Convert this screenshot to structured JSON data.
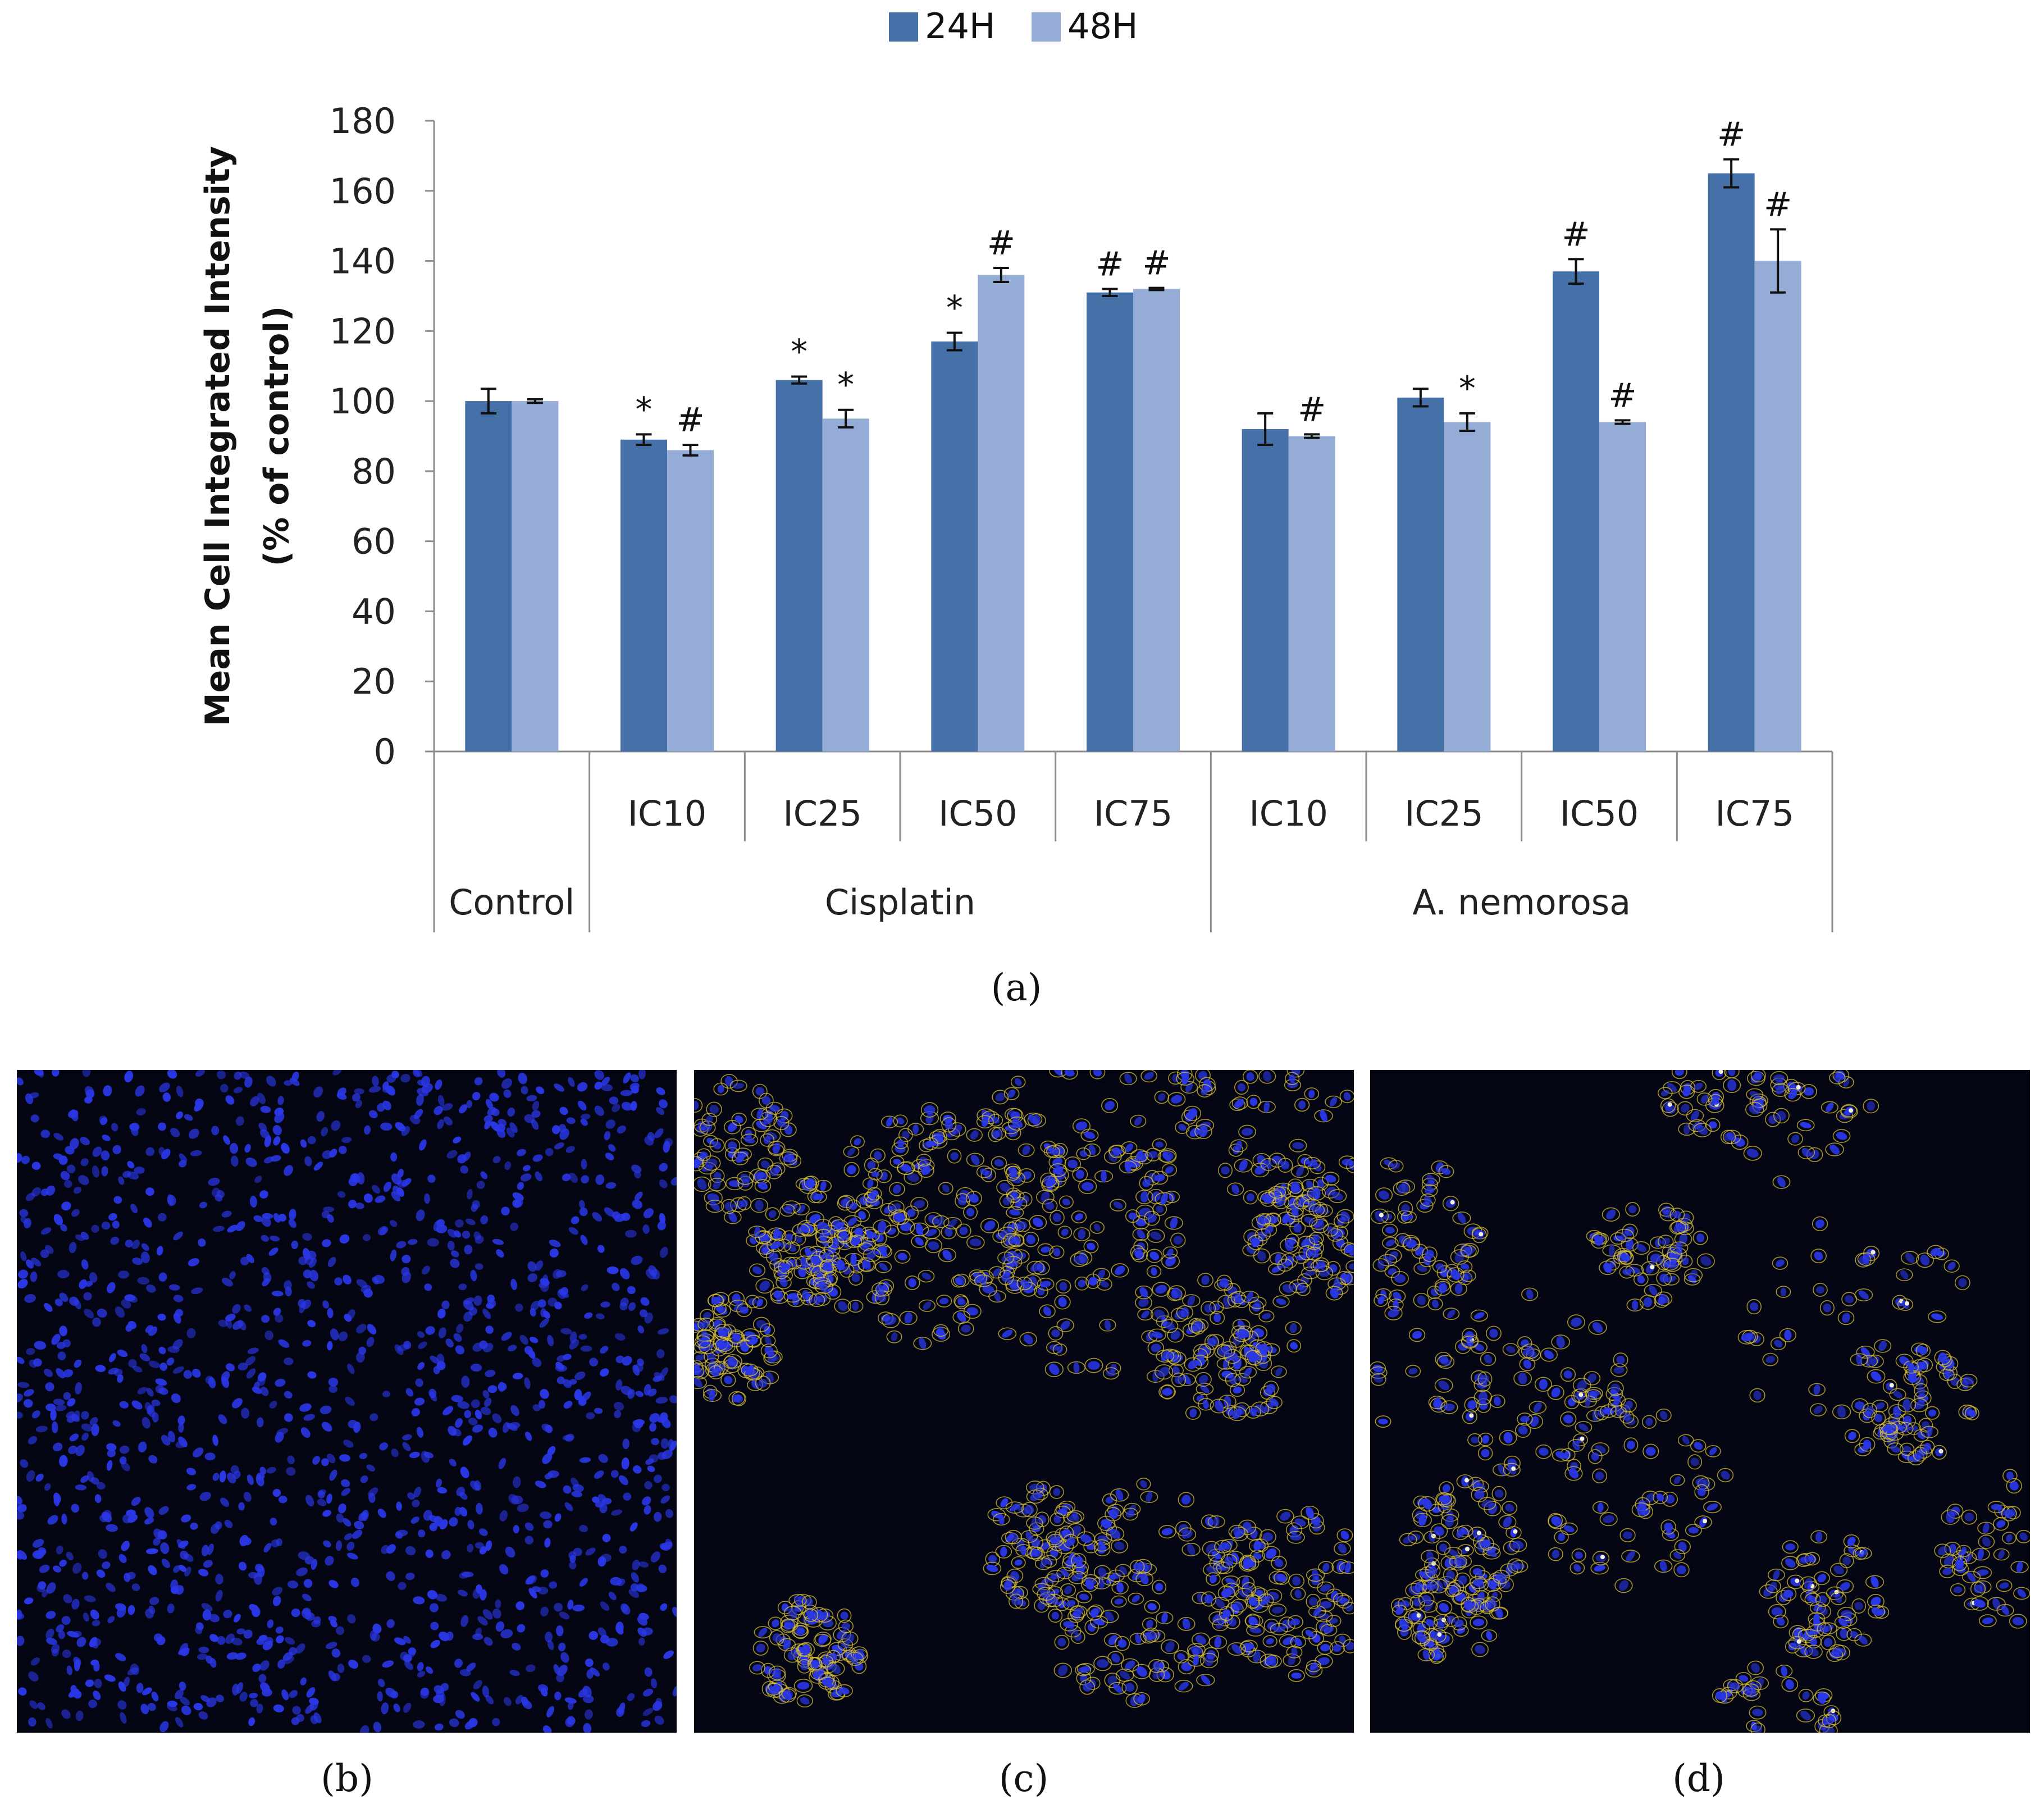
{
  "chart_data": {
    "type": "bar",
    "title": "",
    "ylabel_lines": [
      "Mean Cell Integrated Intensity",
      "(% of control)"
    ],
    "xlabel": "",
    "ylim": [
      0,
      180
    ],
    "yticks": [
      0,
      20,
      40,
      60,
      80,
      100,
      120,
      140,
      160,
      180
    ],
    "legend_position": "top-center",
    "series": [
      {
        "name": "24H",
        "color": "#4571a8",
        "values": [
          100,
          89,
          106,
          117,
          131,
          92,
          101,
          137,
          165
        ],
        "errors": [
          3.5,
          1.5,
          1,
          2.5,
          1,
          4.5,
          2.5,
          3.5,
          4
        ],
        "annotations": [
          "",
          "*",
          "*",
          "*",
          "#",
          "",
          "",
          "#",
          "#"
        ]
      },
      {
        "name": "48H",
        "color": "#94acd6",
        "values": [
          100,
          86,
          95,
          136,
          132,
          90,
          94,
          94,
          140
        ],
        "errors": [
          0.5,
          1.5,
          2.5,
          2,
          0.3,
          0.5,
          2.5,
          0.5,
          9
        ],
        "annotations": [
          "",
          "#",
          "*",
          "#",
          "#",
          "#",
          "*",
          "#",
          "#"
        ]
      }
    ],
    "categories": [
      "",
      "IC10",
      "IC25",
      "IC50",
      "IC75",
      "IC10",
      "IC25",
      "IC50",
      "IC75"
    ],
    "groups": [
      {
        "label": "Control",
        "span": [
          0,
          0
        ]
      },
      {
        "label": "Cisplatin",
        "span": [
          1,
          4
        ]
      },
      {
        "label": "A. nemorosa",
        "span": [
          5,
          8
        ]
      }
    ]
  },
  "captions": {
    "a": "(a)",
    "b": "(b)",
    "c": "(c)",
    "d": "(d)"
  },
  "panels": [
    {
      "name": "control",
      "nucleus_color": "#2a37e6",
      "stain_color": ""
    },
    {
      "name": "cisplatin",
      "nucleus_color": "#2a37e6",
      "stain_color": "#d8c23a"
    },
    {
      "name": "a-nemorosa",
      "nucleus_color": "#2a37e6",
      "stain_color": "#d8c23a"
    }
  ]
}
